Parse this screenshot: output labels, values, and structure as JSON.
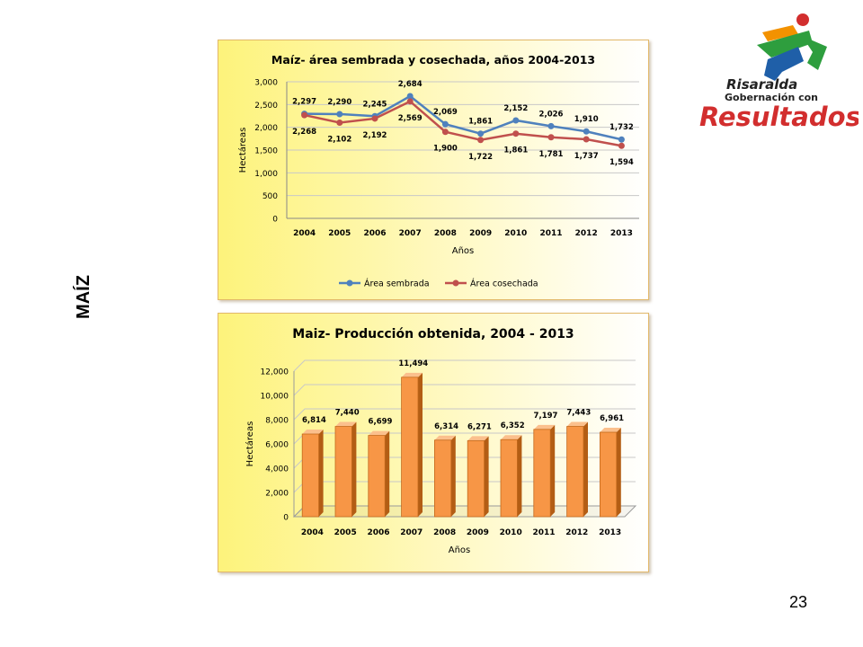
{
  "slide": {
    "side_title": "MAÍZ",
    "page_number": "23"
  },
  "logo": {
    "line1": "Risaralda",
    "line2": "Gobernación con",
    "line3": "Resultados"
  },
  "colors": {
    "sembrada": "#4f81bd",
    "cosechada": "#c0504d",
    "bar_front": "#f79646",
    "bar_side": "#b35d14",
    "bar_top": "#fbc08d",
    "logo_red": "#d22e2e",
    "logo_green": "#2e9e3e",
    "logo_blue": "#1f5fa8",
    "logo_orange": "#f39200"
  },
  "chart_data": [
    {
      "type": "line",
      "title": "Maíz- área sembrada y cosechada, años 2004-2013",
      "xlabel": "Años",
      "ylabel": "Hectáreas",
      "ylim": [
        0,
        3000
      ],
      "yticks": [
        0,
        500,
        1000,
        1500,
        2000,
        2500,
        3000
      ],
      "ytick_labels": [
        "0",
        "500",
        "1,000",
        "1,500",
        "2,000",
        "2,500",
        "3,000"
      ],
      "categories": [
        "2004",
        "2005",
        "2006",
        "2007",
        "2008",
        "2009",
        "2010",
        "2011",
        "2012",
        "2013"
      ],
      "series": [
        {
          "name": "Área sembrada",
          "values": [
            2297,
            2290,
            2245,
            2684,
            2069,
            1861,
            2152,
            2026,
            1910,
            1732
          ],
          "labels": [
            "2,297",
            "2,290",
            "2,245",
            "2,684",
            "2,069",
            "1,861",
            "2,152",
            "2,026",
            "1,910",
            "1,732"
          ]
        },
        {
          "name": "Área cosechada",
          "values": [
            2268,
            2102,
            2192,
            2569,
            1900,
            1722,
            1861,
            1781,
            1737,
            1594
          ],
          "labels": [
            "2,268",
            "2,102",
            "2,192",
            "2,569",
            "1,900",
            "1,722",
            "1,861",
            "1,781",
            "1,737",
            "1,594"
          ]
        }
      ],
      "grid": true,
      "legend": "bottom"
    },
    {
      "type": "bar",
      "title": "Maiz- Producción obtenida, 2004 - 2013",
      "xlabel": "Años",
      "ylabel": "Hectáreas",
      "ylim": [
        0,
        12000
      ],
      "yticks": [
        0,
        2000,
        4000,
        6000,
        8000,
        10000,
        12000
      ],
      "ytick_labels": [
        "0",
        "2,000",
        "4,000",
        "6,000",
        "8,000",
        "10,000",
        "12,000"
      ],
      "categories": [
        "2004",
        "2005",
        "2006",
        "2007",
        "2008",
        "2009",
        "2010",
        "2011",
        "2012",
        "2013"
      ],
      "values": [
        6814,
        7440,
        6699,
        11494,
        6314,
        6271,
        6352,
        7197,
        7443,
        6961
      ],
      "labels": [
        "6,814",
        "7,440",
        "6,699",
        "11,494",
        "6,314",
        "6,271",
        "6,352",
        "7,197",
        "7,443",
        "6,961"
      ],
      "grid": true
    }
  ]
}
